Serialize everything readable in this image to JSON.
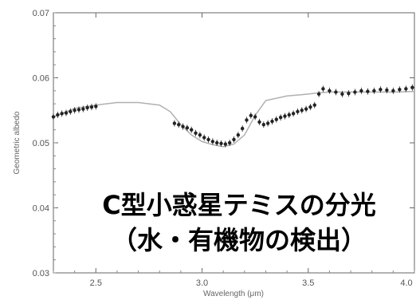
{
  "chart_data": {
    "type": "scatter",
    "xlabel": "Wavelength (μm)",
    "ylabel": "Geometric albedo",
    "xlim": [
      2.3,
      4.0
    ],
    "ylim": [
      0.03,
      0.07
    ],
    "x_ticks": [
      2.5,
      3.0,
      3.5,
      4.0
    ],
    "x_tick_labels": [
      "2.5",
      "3.0",
      "3.5",
      "4.0"
    ],
    "y_ticks": [
      0.03,
      0.04,
      0.05,
      0.06,
      0.07
    ],
    "y_tick_labels": [
      "0.03",
      "0.04",
      "0.05",
      "0.06",
      "0.07"
    ],
    "grid": false,
    "colors": {
      "points": "#222222",
      "model": "#b0b0b0",
      "frame": "#666666"
    },
    "model_curve": {
      "x": [
        2.3,
        2.4,
        2.5,
        2.6,
        2.7,
        2.8,
        2.85,
        2.9,
        2.95,
        3.0,
        3.05,
        3.1,
        3.15,
        3.2,
        3.25,
        3.3,
        3.4,
        3.5,
        3.55,
        3.6,
        3.7,
        3.8,
        3.9,
        4.0
      ],
      "y": [
        0.054,
        0.0553,
        0.0558,
        0.0562,
        0.0562,
        0.0558,
        0.0548,
        0.0528,
        0.0512,
        0.0502,
        0.0497,
        0.0494,
        0.0498,
        0.0512,
        0.0542,
        0.0565,
        0.0572,
        0.0575,
        0.0577,
        0.0578,
        0.0578,
        0.0578,
        0.0578,
        0.0579
      ]
    },
    "observed": {
      "x": [
        2.3,
        2.32,
        2.34,
        2.36,
        2.38,
        2.4,
        2.42,
        2.44,
        2.46,
        2.48,
        2.5,
        2.87,
        2.89,
        2.91,
        2.93,
        2.95,
        2.97,
        2.99,
        3.01,
        3.03,
        3.05,
        3.07,
        3.09,
        3.11,
        3.13,
        3.15,
        3.17,
        3.19,
        3.21,
        3.23,
        3.25,
        3.27,
        3.29,
        3.31,
        3.33,
        3.35,
        3.37,
        3.39,
        3.41,
        3.43,
        3.45,
        3.47,
        3.49,
        3.51,
        3.53,
        3.55,
        3.57,
        3.6,
        3.63,
        3.66,
        3.69,
        3.72,
        3.75,
        3.78,
        3.81,
        3.84,
        3.87,
        3.9,
        3.93,
        3.96,
        3.99
      ],
      "y": [
        0.054,
        0.0543,
        0.0545,
        0.0546,
        0.0548,
        0.055,
        0.0551,
        0.0552,
        0.0554,
        0.0555,
        0.0556,
        0.053,
        0.0528,
        0.0525,
        0.0523,
        0.052,
        0.0515,
        0.0512,
        0.0508,
        0.0505,
        0.0502,
        0.05,
        0.0499,
        0.0498,
        0.05,
        0.0505,
        0.0512,
        0.0522,
        0.0535,
        0.0542,
        0.054,
        0.0532,
        0.0528,
        0.053,
        0.0533,
        0.0536,
        0.0539,
        0.0541,
        0.0543,
        0.0545,
        0.0548,
        0.055,
        0.0552,
        0.0555,
        0.0558,
        0.0575,
        0.0583,
        0.058,
        0.0578,
        0.0575,
        0.0576,
        0.0578,
        0.058,
        0.0579,
        0.058,
        0.0582,
        0.0581,
        0.058,
        0.0582,
        0.0583,
        0.0585
      ]
    }
  },
  "overlay": {
    "line1": "C型小惑星テミスの分光",
    "line2": "（水・有機物の検出）"
  }
}
